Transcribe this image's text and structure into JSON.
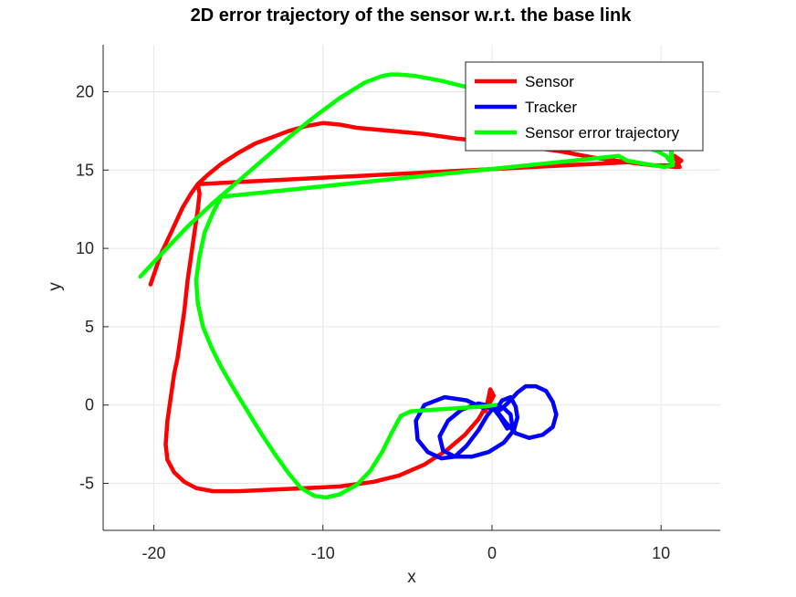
{
  "chart_data": {
    "type": "line",
    "title": "2D error trajectory of the sensor w.r.t. the base link",
    "xlabel": "x",
    "ylabel": "y",
    "xlim": [
      -23,
      13.5
    ],
    "ylim": [
      -8,
      23
    ],
    "xticks": [
      -20,
      -10,
      0,
      10
    ],
    "yticks": [
      -5,
      0,
      5,
      10,
      15,
      20
    ],
    "grid": true,
    "legend_position": "top-right",
    "series": [
      {
        "name": "Sensor",
        "color": "#ff0000",
        "points": [
          [
            -20.2,
            7.7
          ],
          [
            -19.6,
            9.6
          ],
          [
            -18.9,
            11.2
          ],
          [
            -18.3,
            12.6
          ],
          [
            -17.8,
            13.5
          ],
          [
            -17.4,
            14.1
          ],
          [
            -16.8,
            14.7
          ],
          [
            -16.0,
            15.4
          ],
          [
            -15.0,
            16.1
          ],
          [
            -14.0,
            16.7
          ],
          [
            -13.0,
            17.1
          ],
          [
            -12.0,
            17.5
          ],
          [
            -11.0,
            17.8
          ],
          [
            -10.0,
            18.0
          ],
          [
            -9.0,
            17.9
          ],
          [
            -8.0,
            17.7
          ],
          [
            -6.0,
            17.5
          ],
          [
            -4.0,
            17.3
          ],
          [
            -2.0,
            17.0
          ],
          [
            0.0,
            16.8
          ],
          [
            2.0,
            16.5
          ],
          [
            4.0,
            16.2
          ],
          [
            6.0,
            15.8
          ],
          [
            8.0,
            15.5
          ],
          [
            9.5,
            15.3
          ],
          [
            10.8,
            15.3
          ],
          [
            11.2,
            15.6
          ],
          [
            10.8,
            15.9
          ],
          [
            11.1,
            15.2
          ],
          [
            10.9,
            15.2
          ],
          [
            9.5,
            15.3
          ],
          [
            8.0,
            15.5
          ],
          [
            -17.4,
            14.1
          ],
          [
            -17.3,
            13.5
          ],
          [
            -17.4,
            12.5
          ],
          [
            -17.6,
            11.0
          ],
          [
            -17.8,
            9.5
          ],
          [
            -18.0,
            8.0
          ],
          [
            -18.2,
            6.0
          ],
          [
            -18.4,
            4.5
          ],
          [
            -18.6,
            3.0
          ],
          [
            -18.8,
            2.0
          ],
          [
            -19.0,
            0.5
          ],
          [
            -19.2,
            -1.0
          ],
          [
            -19.3,
            -2.5
          ],
          [
            -19.2,
            -3.5
          ],
          [
            -18.8,
            -4.3
          ],
          [
            -18.2,
            -4.9
          ],
          [
            -17.5,
            -5.3
          ],
          [
            -16.5,
            -5.5
          ],
          [
            -15.0,
            -5.5
          ],
          [
            -13.0,
            -5.4
          ],
          [
            -11.0,
            -5.3
          ],
          [
            -9.0,
            -5.2
          ],
          [
            -7.0,
            -4.9
          ],
          [
            -5.5,
            -4.5
          ],
          [
            -4.0,
            -3.8
          ],
          [
            -2.7,
            -2.9
          ],
          [
            -1.6,
            -1.9
          ],
          [
            -0.8,
            -0.9
          ],
          [
            -0.3,
            0.0
          ],
          [
            -0.1,
            1.0
          ],
          [
            0.1,
            0.6
          ],
          [
            -0.4,
            -0.4
          ]
        ]
      },
      {
        "name": "Tracker",
        "color": "#0000ff",
        "points": [
          [
            -0.5,
            -0.2
          ],
          [
            -1.5,
            0.3
          ],
          [
            -2.8,
            0.5
          ],
          [
            -4.0,
            0.0
          ],
          [
            -4.5,
            -1.0
          ],
          [
            -4.4,
            -2.2
          ],
          [
            -3.8,
            -3.0
          ],
          [
            -3.0,
            -3.4
          ],
          [
            -2.2,
            -3.3
          ],
          [
            -1.5,
            -2.6
          ],
          [
            -0.8,
            -1.6
          ],
          [
            -0.3,
            -0.7
          ],
          [
            0.2,
            0.0
          ],
          [
            0.7,
            -0.2
          ],
          [
            1.1,
            -0.6
          ],
          [
            1.2,
            -1.3
          ],
          [
            0.9,
            -1.5
          ],
          [
            0.5,
            -0.8
          ],
          [
            0.0,
            -0.1
          ],
          [
            -0.8,
            0.1
          ],
          [
            -1.8,
            -0.3
          ],
          [
            -2.6,
            -1.0
          ],
          [
            -3.1,
            -2.0
          ],
          [
            -2.9,
            -2.9
          ],
          [
            -2.2,
            -3.3
          ],
          [
            -1.2,
            -3.3
          ],
          [
            -0.2,
            -3.0
          ],
          [
            0.7,
            -2.4
          ],
          [
            1.3,
            -1.6
          ],
          [
            1.5,
            -0.8
          ],
          [
            1.4,
            -0.1
          ],
          [
            1.1,
            0.5
          ],
          [
            0.6,
            0.3
          ],
          [
            0.3,
            -0.2
          ],
          [
            0.5,
            -0.3
          ],
          [
            1.0,
            0.2
          ],
          [
            1.5,
            0.8
          ],
          [
            2.0,
            1.2
          ],
          [
            2.6,
            1.2
          ],
          [
            3.2,
            0.9
          ],
          [
            3.6,
            0.2
          ],
          [
            3.8,
            -0.6
          ],
          [
            3.6,
            -1.4
          ],
          [
            3.0,
            -1.9
          ],
          [
            2.2,
            -2.1
          ],
          [
            1.4,
            -1.8
          ],
          [
            0.8,
            -1.1
          ],
          [
            0.3,
            -0.4
          ],
          [
            -0.3,
            -0.1
          ]
        ]
      },
      {
        "name": "Sensor error trajectory",
        "color": "#00ff00",
        "points": [
          [
            -20.8,
            8.2
          ],
          [
            -19.5,
            9.7
          ],
          [
            -18.0,
            11.4
          ],
          [
            -16.5,
            12.9
          ],
          [
            -15.0,
            14.3
          ],
          [
            -13.5,
            15.7
          ],
          [
            -12.0,
            17.1
          ],
          [
            -10.5,
            18.4
          ],
          [
            -9.0,
            19.6
          ],
          [
            -7.5,
            20.6
          ],
          [
            -6.5,
            21.0
          ],
          [
            -6.0,
            21.1
          ],
          [
            -5.5,
            21.1
          ],
          [
            -4.5,
            21.0
          ],
          [
            -3.0,
            20.7
          ],
          [
            -1.5,
            20.3
          ],
          [
            0.0,
            20.0
          ],
          [
            9.0,
            16.5
          ],
          [
            9.8,
            16.2
          ],
          [
            10.3,
            15.9
          ],
          [
            10.5,
            15.6
          ],
          [
            10.6,
            15.5
          ],
          [
            10.6,
            16.4
          ],
          [
            10.7,
            15.3
          ],
          [
            10.2,
            15.2
          ],
          [
            9.0,
            15.4
          ],
          [
            8.0,
            15.6
          ],
          [
            7.5,
            15.9
          ],
          [
            -16.0,
            13.3
          ],
          [
            -16.5,
            12.3
          ],
          [
            -17.0,
            11.0
          ],
          [
            -17.3,
            9.5
          ],
          [
            -17.5,
            8.0
          ],
          [
            -17.4,
            6.5
          ],
          [
            -17.1,
            5.0
          ],
          [
            -16.6,
            3.7
          ],
          [
            -16.0,
            2.4
          ],
          [
            -15.2,
            0.9
          ],
          [
            -14.4,
            -0.5
          ],
          [
            -13.6,
            -1.9
          ],
          [
            -12.8,
            -3.2
          ],
          [
            -12.0,
            -4.4
          ],
          [
            -11.3,
            -5.3
          ],
          [
            -10.5,
            -5.8
          ],
          [
            -9.8,
            -5.9
          ],
          [
            -9.0,
            -5.7
          ],
          [
            -8.0,
            -5.1
          ],
          [
            -7.2,
            -4.2
          ],
          [
            -6.5,
            -3.0
          ],
          [
            -5.9,
            -1.7
          ],
          [
            -5.4,
            -0.7
          ],
          [
            -4.8,
            -0.4
          ],
          [
            -3.5,
            -0.3
          ],
          [
            -2.0,
            -0.2
          ],
          [
            -0.5,
            -0.1
          ],
          [
            0.2,
            0.0
          ]
        ]
      }
    ]
  }
}
